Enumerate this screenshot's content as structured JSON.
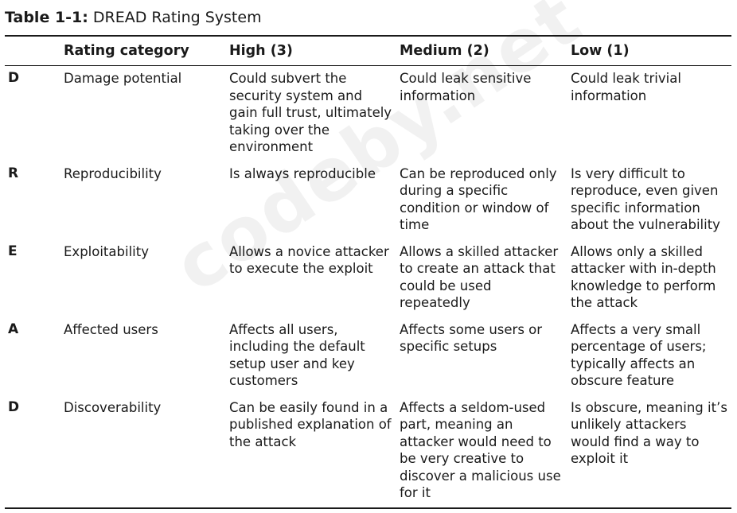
{
  "caption": {
    "label": "Table 1-1:",
    "title": "DREAD Rating System"
  },
  "headers": [
    "",
    "Rating category",
    "High (3)",
    "Medium (2)",
    "Low (1)"
  ],
  "rows": [
    {
      "letter": "D",
      "category": "Damage potential",
      "high": "Could subvert the security system and gain full trust, ultimately taking over the environment",
      "medium": "Could leak sensitive information",
      "low": "Could leak trivial information"
    },
    {
      "letter": "R",
      "category": "Reproducibility",
      "high": "Is always reproducible",
      "medium": "Can be reproduced only during a specific condition or window of time",
      "low": "Is very difficult to reproduce, even given specific information about the vulnerability"
    },
    {
      "letter": "E",
      "category": "Exploitability",
      "high": "Allows a novice attacker to execute the exploit",
      "medium": "Allows a skilled attacker to create an attack that could be used repeatedly",
      "low": "Allows only a skilled attacker with in-depth knowledge to perform the attack"
    },
    {
      "letter": "A",
      "category": "Affected users",
      "high": "Affects all users, including the default setup user and key customers",
      "medium": "Affects some users or specific setups",
      "low": "Affects a very small percentage of users; typically affects an obscure feature"
    },
    {
      "letter": "D",
      "category": "Discoverability",
      "high": "Can be easily found in a published explanation of the attack",
      "medium": "Affects a seldom-used part, meaning an attacker would need to be very creative to discover a malicious use for it",
      "low": "Is obscure, meaning it’s unlikely attackers would find a way to exploit it"
    }
  ],
  "watermark": "codeby.net"
}
